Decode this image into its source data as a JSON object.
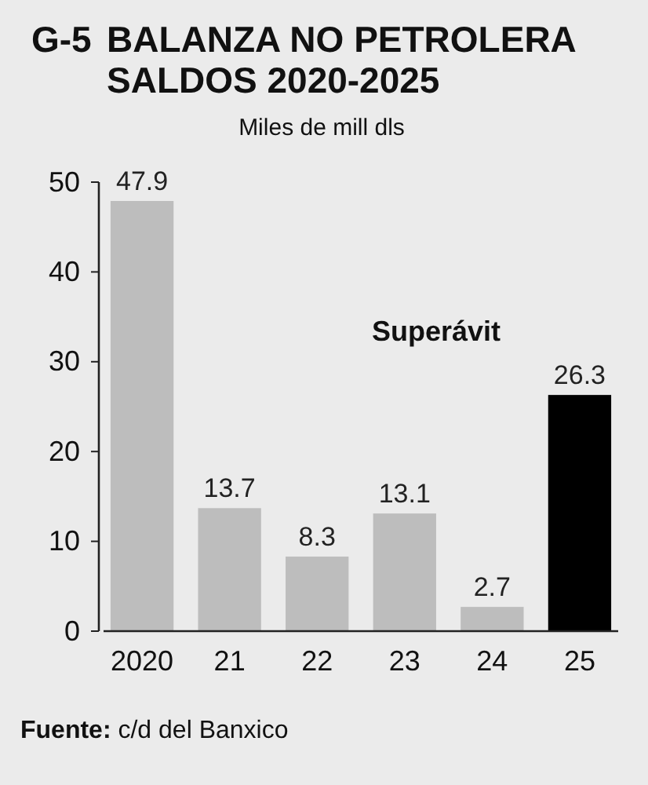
{
  "chart_data": {
    "type": "bar",
    "title": "G-5 BALANZA NO PETROLERA\nSALDOS 2020-2025",
    "subtitle": "Miles de mill dls",
    "categories": [
      "2020",
      "21",
      "22",
      "23",
      "24",
      "25"
    ],
    "values": [
      47.9,
      13.7,
      8.3,
      13.1,
      2.7,
      26.3
    ],
    "colors": [
      "#bdbdbd",
      "#bdbdbd",
      "#bdbdbd",
      "#bdbdbd",
      "#bdbdbd",
      "#000000"
    ],
    "ylim": [
      0,
      50
    ],
    "yticks": [
      0,
      10,
      20,
      30,
      40,
      50
    ],
    "data_labels": true,
    "annotations": [
      "Superávit",
      "Fuente: c/d del Banxico"
    ]
  }
}
